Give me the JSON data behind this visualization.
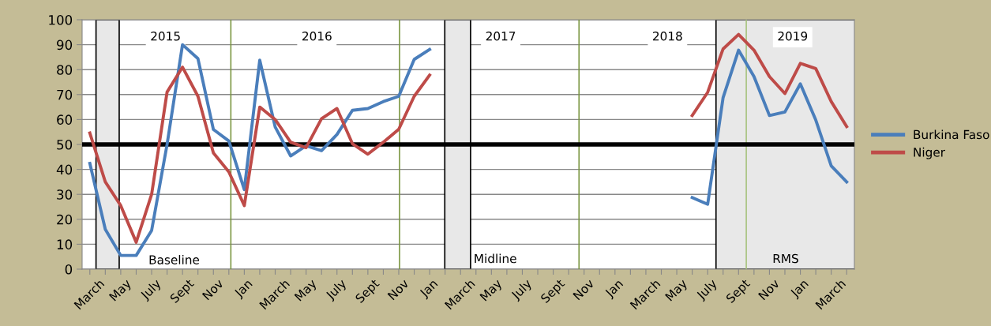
{
  "chart_data": {
    "type": "line",
    "categories": [
      "March",
      null,
      "May",
      null,
      "July",
      null,
      "Sept",
      null,
      "Nov",
      null,
      "Jan",
      null,
      "March",
      null,
      "May",
      null,
      "July",
      null,
      "Sept",
      null,
      "Nov",
      null,
      "Jan",
      null,
      "March",
      null,
      "May",
      null,
      "July",
      null,
      "Sept",
      null,
      "Nov",
      null,
      "Jan",
      null,
      "March",
      null,
      "May",
      null,
      "July",
      null,
      "Sept",
      null,
      "Nov",
      null,
      "Jan",
      null,
      "March",
      null
    ],
    "series": [
      {
        "name": "Burkina Faso",
        "color": "#4a7ebb",
        "values": [
          42.4,
          16,
          5.5,
          5.5,
          15.5,
          50,
          90,
          84.4,
          56,
          51.4,
          31.9,
          83.8,
          57,
          45.4,
          49.5,
          47.5,
          54,
          63.7,
          64.4,
          67.2,
          69.3,
          84.1,
          88.1,
          null,
          null,
          null,
          null,
          null,
          null,
          null,
          null,
          null,
          null,
          null,
          null,
          null,
          null,
          null,
          null,
          28.7,
          26,
          68.8,
          87.8,
          77.2,
          61.6,
          63,
          74.3,
          59.8,
          41.4,
          35
        ]
      },
      {
        "name": "Niger",
        "color": "#be4b48",
        "values": [
          54.6,
          35,
          25.5,
          10.8,
          30,
          71,
          81,
          69.3,
          46.6,
          39,
          25.5,
          65,
          60,
          50.9,
          48.7,
          60.3,
          64.4,
          50.3,
          46.1,
          50.9,
          56.1,
          69.3,
          77.8,
          null,
          null,
          null,
          null,
          null,
          null,
          null,
          null,
          null,
          null,
          null,
          null,
          null,
          null,
          null,
          null,
          61.6,
          70.9,
          88.3,
          94.1,
          87.8,
          77.2,
          70.4,
          82.5,
          80.4,
          67.2,
          57.2
        ]
      }
    ],
    "ylim": [
      0,
      100
    ],
    "yticks": [
      0,
      10,
      20,
      30,
      40,
      50,
      60,
      70,
      80,
      90,
      100
    ],
    "grid": "y",
    "legend": "right",
    "marker": "none",
    "line_style": "solid",
    "ref_lines": [
      {
        "axis": "y",
        "value": 50,
        "color": "#000000"
      }
    ],
    "annotations": [
      "2015",
      "2016",
      "2017",
      "2018",
      "2019",
      "Baseline",
      "Midline",
      "RMS"
    ]
  }
}
